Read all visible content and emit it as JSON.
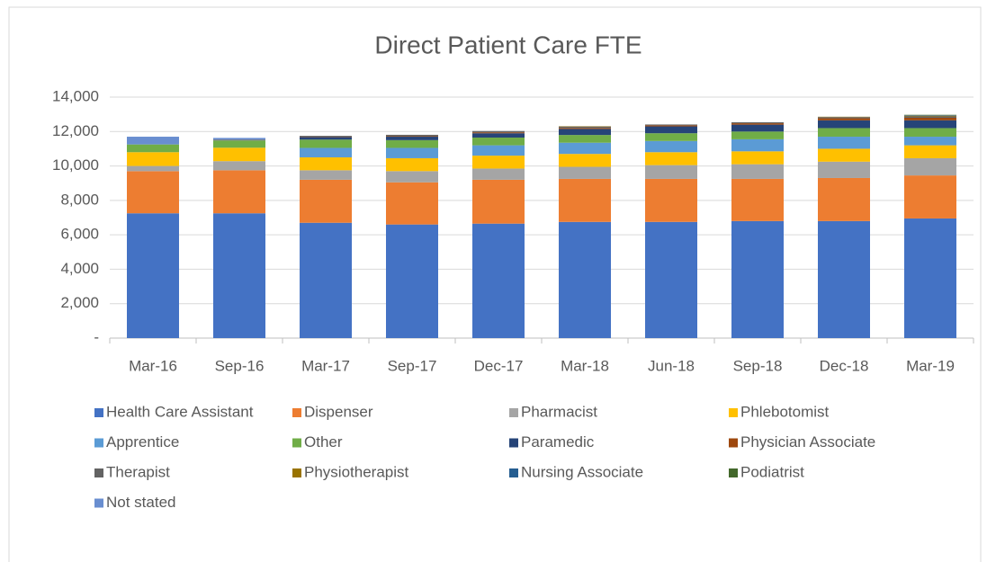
{
  "chart_data": {
    "type": "stacked_bar",
    "title": "Direct Patient Care FTE",
    "categories": [
      "Mar-16",
      "Sep-16",
      "Mar-17",
      "Sep-17",
      "Dec-17",
      "Mar-18",
      "Jun-18",
      "Sep-18",
      "Dec-18",
      "Mar-19"
    ],
    "series": [
      {
        "name": "Health Care Assistant",
        "color": "#4472c4",
        "values": [
          7250,
          7250,
          6700,
          6600,
          6650,
          6750,
          6750,
          6800,
          6800,
          6950
        ]
      },
      {
        "name": "Dispenser",
        "color": "#ed7d31",
        "values": [
          2450,
          2500,
          2500,
          2450,
          2550,
          2500,
          2500,
          2450,
          2500,
          2500
        ]
      },
      {
        "name": "Pharmacist",
        "color": "#a5a5a5",
        "values": [
          300,
          530,
          550,
          650,
          650,
          700,
          800,
          850,
          950,
          1000
        ]
      },
      {
        "name": "Phlebotomist",
        "color": "#ffc000",
        "values": [
          800,
          780,
          750,
          750,
          750,
          750,
          750,
          750,
          750,
          750
        ]
      },
      {
        "name": "Apprentice",
        "color": "#5b9bd5",
        "values": [
          0,
          0,
          550,
          600,
          600,
          650,
          650,
          700,
          700,
          500
        ]
      },
      {
        "name": "Other",
        "color": "#70ad47",
        "values": [
          450,
          420,
          480,
          450,
          450,
          450,
          450,
          450,
          500,
          500
        ]
      },
      {
        "name": "Paramedic",
        "color": "#264478",
        "values": [
          0,
          0,
          150,
          200,
          250,
          350,
          400,
          400,
          450,
          450
        ]
      },
      {
        "name": "Physician Associate",
        "color": "#9e480e",
        "values": [
          0,
          0,
          20,
          30,
          50,
          60,
          60,
          80,
          120,
          150
        ]
      },
      {
        "name": "Therapist",
        "color": "#636363",
        "values": [
          0,
          50,
          50,
          80,
          80,
          80,
          50,
          60,
          70,
          80
        ]
      },
      {
        "name": "Physiotherapist",
        "color": "#997300",
        "values": [
          0,
          0,
          0,
          0,
          0,
          20,
          0,
          0,
          20,
          40
        ]
      },
      {
        "name": "Nursing Associate",
        "color": "#255e91",
        "values": [
          0,
          0,
          0,
          0,
          0,
          0,
          0,
          0,
          0,
          30
        ]
      },
      {
        "name": "Podiatrist",
        "color": "#43682b",
        "values": [
          0,
          0,
          0,
          0,
          0,
          0,
          0,
          0,
          0,
          20
        ]
      },
      {
        "name": "Not stated",
        "color": "#698ed0",
        "values": [
          450,
          100,
          0,
          0,
          0,
          0,
          0,
          0,
          0,
          0
        ]
      }
    ],
    "ylim": [
      0,
      14000
    ],
    "yticks": [
      {
        "value": 0,
        "label": "-"
      },
      {
        "value": 2000,
        "label": "2,000"
      },
      {
        "value": 4000,
        "label": "4,000"
      },
      {
        "value": 6000,
        "label": "6,000"
      },
      {
        "value": 8000,
        "label": "8,000"
      },
      {
        "value": 10000,
        "label": "10,000"
      },
      {
        "value": 12000,
        "label": "12,000"
      },
      {
        "value": 14000,
        "label": "14,000"
      }
    ],
    "grid": true
  }
}
